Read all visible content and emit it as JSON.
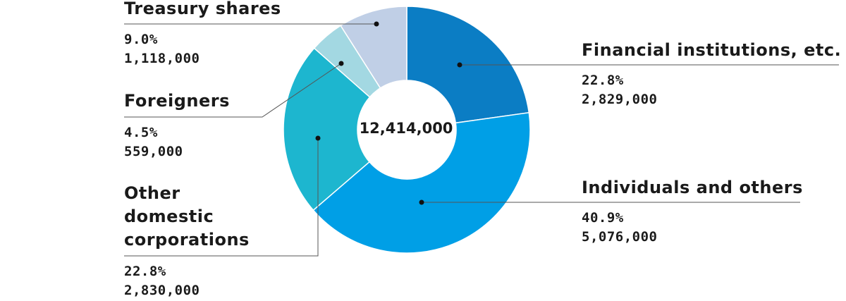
{
  "chart_data": {
    "type": "pie",
    "style": "donut",
    "center_label": "12,414,000",
    "start_angle": "top (12 o'clock), clockwise",
    "slices": [
      {
        "label": "Financial institutions, etc.",
        "percent_text": "22.8%",
        "value_text": "2,829,000",
        "value": 2829000,
        "color": "#0b7dc4"
      },
      {
        "label": "Individuals and others",
        "percent_text": "40.9%",
        "value_text": "5,076,000",
        "value": 5076000,
        "color": "#009fe6"
      },
      {
        "label": "Other domestic corporations",
        "label_lines": [
          "Other",
          "domestic",
          "corporations"
        ],
        "percent_text": "22.8%",
        "value_text": "2,830,000",
        "value": 2830000,
        "color": "#1db6cf"
      },
      {
        "label": "Foreigners",
        "percent_text": "4.5%",
        "value_text": "559,000",
        "value": 559000,
        "color": "#a3d8e2"
      },
      {
        "label": "Treasury shares",
        "percent_text": "9.0%",
        "value_text": "1,118,000",
        "value": 1118000,
        "color": "#c0cfe6"
      }
    ]
  }
}
